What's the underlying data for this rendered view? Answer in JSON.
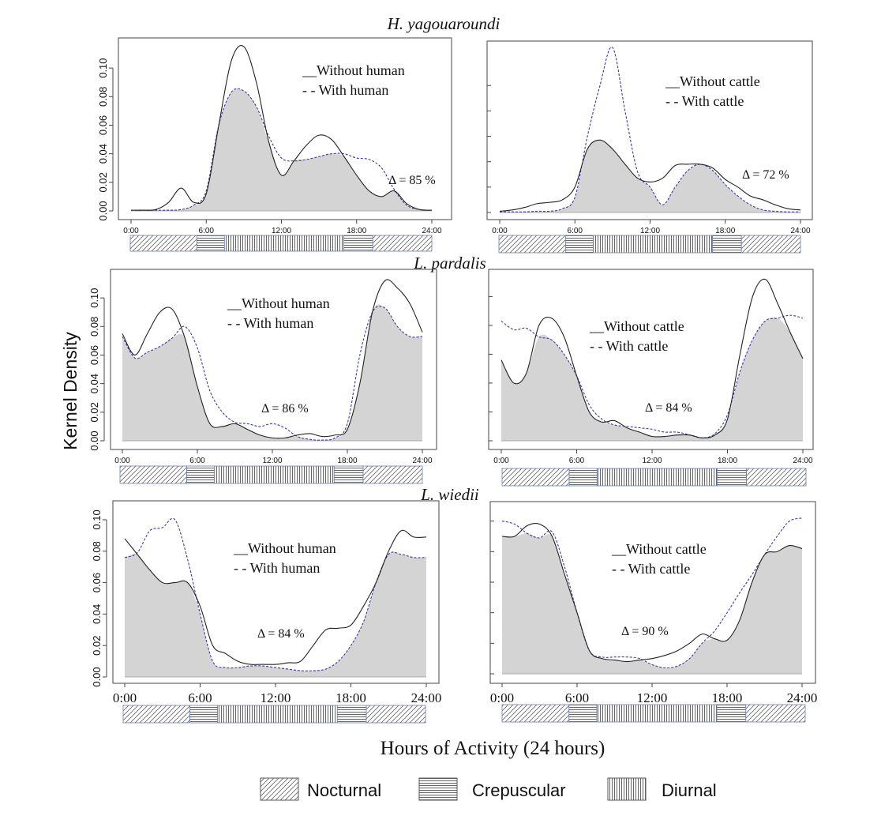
{
  "figure": {
    "ylabel": "Kernel Density",
    "xlabel": "Hours of Activity (24 hours)",
    "legend": [
      {
        "label": "Nocturnal",
        "pattern": "nocturnal"
      },
      {
        "label": "Crepuscular",
        "pattern": "crepuscular"
      },
      {
        "label": "Diurnal",
        "pattern": "diurnal"
      }
    ]
  },
  "colors": {
    "fill": "#d4d4d4",
    "solid": "#222222",
    "dashed": "#3a3aa8",
    "axis": "#444444"
  },
  "rows": [
    {
      "title": "H. yagouaroundi"
    },
    {
      "title": "L. pardalis"
    },
    {
      "title": "L. wiedii"
    }
  ],
  "chart_data": [
    {
      "type": "line",
      "species": "H. yagouaroundi",
      "comparison": "human",
      "xticks": [
        "0:00",
        "6:00",
        "12:00",
        "18:00",
        "24:00"
      ],
      "yticks": [
        "0.00",
        "0.02",
        "0.04",
        "0.06",
        "0.08",
        "0.10"
      ],
      "ylim": [
        0,
        0.115
      ],
      "legend": [
        "__Without  human",
        "- - With human"
      ],
      "overlap": "Δ = 85 %",
      "x": [
        0,
        1,
        2,
        3,
        4,
        5,
        6,
        7,
        8,
        9,
        10,
        11,
        12,
        13,
        14,
        15,
        16,
        17,
        18,
        19,
        20,
        21,
        22,
        23,
        24
      ],
      "series": [
        {
          "name": "Without  human",
          "style": "solid",
          "values": [
            0.0005,
            0.0005,
            0.001,
            0.006,
            0.016,
            0.006,
            0.012,
            0.06,
            0.105,
            0.115,
            0.09,
            0.048,
            0.025,
            0.035,
            0.046,
            0.053,
            0.05,
            0.038,
            0.025,
            0.014,
            0.01,
            0.014,
            0.005,
            0.001,
            0.0005
          ]
        },
        {
          "name": "With human",
          "style": "dashed",
          "values": [
            0.0005,
            0.0005,
            0.0005,
            0.0005,
            0.001,
            0.004,
            0.014,
            0.06,
            0.083,
            0.084,
            0.073,
            0.052,
            0.037,
            0.035,
            0.036,
            0.038,
            0.04,
            0.04,
            0.037,
            0.036,
            0.03,
            0.015,
            0.004,
            0.001,
            0.0005
          ]
        }
      ]
    },
    {
      "type": "line",
      "species": "H. yagouaroundi",
      "comparison": "cattle",
      "xticks": [
        "0:00",
        "6:00",
        "12:00",
        "18:00",
        "24:00"
      ],
      "yticks": [],
      "ylim": [
        0,
        0.13
      ],
      "legend": [
        "__Without cattle",
        "- - With cattle"
      ],
      "overlap": "Δ = 72 %",
      "x": [
        0,
        1,
        2,
        3,
        4,
        5,
        6,
        7,
        8,
        9,
        10,
        11,
        12,
        13,
        14,
        15,
        16,
        17,
        18,
        19,
        20,
        21,
        22,
        23,
        24
      ],
      "series": [
        {
          "name": "Without cattle",
          "style": "solid",
          "values": [
            0.001,
            0.002,
            0.004,
            0.007,
            0.008,
            0.01,
            0.02,
            0.05,
            0.057,
            0.05,
            0.038,
            0.027,
            0.024,
            0.027,
            0.037,
            0.038,
            0.038,
            0.035,
            0.026,
            0.02,
            0.013,
            0.01,
            0.006,
            0.003,
            0.002
          ]
        },
        {
          "name": "With cattle",
          "style": "dashed",
          "values": [
            0.0005,
            0.0005,
            0.0005,
            0.001,
            0.001,
            0.003,
            0.012,
            0.06,
            0.1,
            0.13,
            0.08,
            0.032,
            0.02,
            0.006,
            0.02,
            0.033,
            0.038,
            0.033,
            0.022,
            0.013,
            0.006,
            0.002,
            0.001,
            0.0005,
            0.0005
          ]
        }
      ]
    },
    {
      "type": "line",
      "species": "L. pardalis",
      "comparison": "human",
      "xticks": [
        "0:00",
        "6:00",
        "12:00",
        "18:00",
        "24:00"
      ],
      "yticks": [
        "0.00",
        "0.02",
        "0.04",
        "0.06",
        "0.08",
        "0.10"
      ],
      "ylim": [
        0,
        0.115
      ],
      "legend": [
        "__Without  human",
        "- - With human"
      ],
      "overlap": "Δ = 86 %",
      "x": [
        0,
        1,
        2,
        3,
        4,
        5,
        6,
        7,
        8,
        9,
        10,
        11,
        12,
        13,
        14,
        15,
        16,
        17,
        18,
        19,
        20,
        21,
        22,
        23,
        24
      ],
      "series": [
        {
          "name": "Without  human",
          "style": "solid",
          "values": [
            0.075,
            0.06,
            0.075,
            0.09,
            0.092,
            0.072,
            0.038,
            0.012,
            0.01,
            0.012,
            0.008,
            0.004,
            0.002,
            0.002,
            0.004,
            0.005,
            0.003,
            0.004,
            0.008,
            0.04,
            0.09,
            0.112,
            0.107,
            0.096,
            0.076
          ]
        },
        {
          "name": "With human",
          "style": "dashed",
          "values": [
            0.073,
            0.058,
            0.062,
            0.066,
            0.072,
            0.08,
            0.065,
            0.035,
            0.02,
            0.013,
            0.012,
            0.01,
            0.012,
            0.009,
            0.003,
            0.001,
            0.0005,
            0.002,
            0.012,
            0.06,
            0.09,
            0.093,
            0.08,
            0.073,
            0.073
          ]
        }
      ]
    },
    {
      "type": "line",
      "species": "L. pardalis",
      "comparison": "cattle",
      "xticks": [
        "0:00",
        "6:00",
        "12:00",
        "18:00",
        "24:00"
      ],
      "yticks": [],
      "ylim": [
        0,
        0.115
      ],
      "legend": [
        "__Without cattle",
        "- - With cattle"
      ],
      "overlap": "Δ = 84 %",
      "x": [
        0,
        1,
        2,
        3,
        4,
        5,
        6,
        7,
        8,
        9,
        10,
        11,
        12,
        13,
        14,
        15,
        16,
        17,
        18,
        19,
        20,
        21,
        22,
        23,
        24
      ],
      "series": [
        {
          "name": "Without cattle",
          "style": "solid",
          "values": [
            0.056,
            0.04,
            0.047,
            0.08,
            0.085,
            0.072,
            0.045,
            0.02,
            0.013,
            0.014,
            0.009,
            0.006,
            0.003,
            0.003,
            0.004,
            0.004,
            0.002,
            0.004,
            0.015,
            0.06,
            0.1,
            0.112,
            0.095,
            0.075,
            0.057
          ]
        },
        {
          "name": "With cattle",
          "style": "dashed",
          "values": [
            0.083,
            0.077,
            0.078,
            0.072,
            0.07,
            0.06,
            0.045,
            0.025,
            0.015,
            0.011,
            0.01,
            0.009,
            0.008,
            0.006,
            0.006,
            0.004,
            0.002,
            0.005,
            0.018,
            0.048,
            0.07,
            0.083,
            0.085,
            0.087,
            0.085
          ]
        }
      ]
    },
    {
      "type": "line",
      "species": "L. wiedii",
      "comparison": "human",
      "xticks": [
        "0:00",
        "6:00",
        "12:00",
        "18:00",
        "24:00"
      ],
      "yticks": [
        "0.00",
        "0.02",
        "0.04",
        "0.06",
        "0.08",
        "0.10"
      ],
      "ylim": [
        0,
        0.105
      ],
      "legend": [
        "__Without  human",
        "- - With human"
      ],
      "overlap": "Δ = 84 %",
      "x": [
        0,
        1,
        2,
        3,
        4,
        5,
        6,
        7,
        8,
        9,
        10,
        11,
        12,
        13,
        14,
        15,
        16,
        17,
        18,
        19,
        20,
        21,
        22,
        23,
        24
      ],
      "series": [
        {
          "name": "Without  human",
          "style": "solid",
          "values": [
            0.088,
            0.078,
            0.068,
            0.06,
            0.06,
            0.06,
            0.045,
            0.02,
            0.015,
            0.01,
            0.008,
            0.008,
            0.008,
            0.009,
            0.01,
            0.02,
            0.03,
            0.031,
            0.033,
            0.045,
            0.06,
            0.08,
            0.093,
            0.089,
            0.089
          ]
        },
        {
          "name": "With human",
          "style": "dashed",
          "values": [
            0.076,
            0.079,
            0.093,
            0.095,
            0.1,
            0.075,
            0.04,
            0.01,
            0.006,
            0.006,
            0.007,
            0.007,
            0.006,
            0.005,
            0.004,
            0.004,
            0.005,
            0.01,
            0.02,
            0.035,
            0.06,
            0.078,
            0.078,
            0.076,
            0.076
          ]
        }
      ]
    },
    {
      "type": "line",
      "species": "L. wiedii",
      "comparison": "cattle",
      "xticks": [
        "0:00",
        "6:00",
        "12:00",
        "18:00",
        "24:00"
      ],
      "yticks": [],
      "ylim": [
        0,
        0.105
      ],
      "legend": [
        "__Without cattle",
        "- - With cattle"
      ],
      "overlap": "Δ = 90 %",
      "x": [
        0,
        1,
        2,
        3,
        4,
        5,
        6,
        7,
        8,
        9,
        10,
        11,
        12,
        13,
        14,
        15,
        16,
        17,
        18,
        19,
        20,
        21,
        22,
        23,
        24
      ],
      "series": [
        {
          "name": "Without cattle",
          "style": "solid",
          "values": [
            0.09,
            0.09,
            0.097,
            0.098,
            0.09,
            0.065,
            0.04,
            0.015,
            0.01,
            0.009,
            0.008,
            0.009,
            0.01,
            0.012,
            0.015,
            0.02,
            0.026,
            0.023,
            0.022,
            0.035,
            0.06,
            0.078,
            0.08,
            0.084,
            0.082
          ]
        },
        {
          "name": "With cattle",
          "style": "dashed",
          "values": [
            0.1,
            0.098,
            0.092,
            0.089,
            0.093,
            0.07,
            0.04,
            0.015,
            0.011,
            0.011,
            0.011,
            0.01,
            0.006,
            0.004,
            0.005,
            0.01,
            0.02,
            0.028,
            0.04,
            0.053,
            0.065,
            0.078,
            0.09,
            0.1,
            0.102
          ]
        }
      ]
    }
  ]
}
